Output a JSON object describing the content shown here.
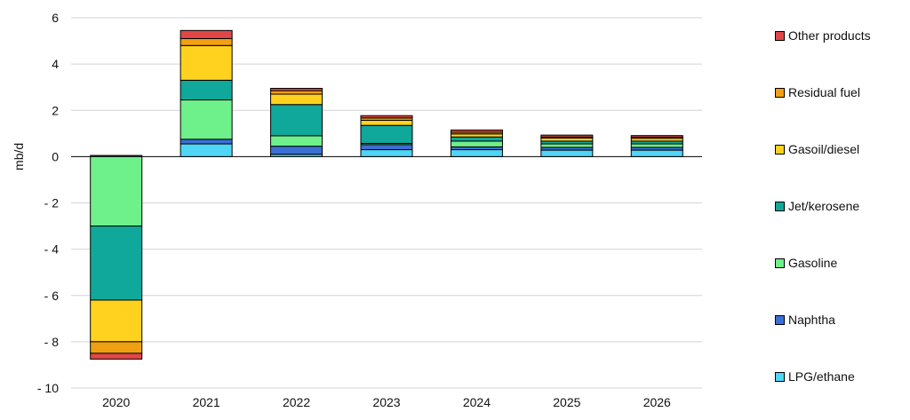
{
  "chart_data": {
    "type": "bar",
    "stacked": true,
    "title": "",
    "xlabel": "",
    "ylabel": "mb/d",
    "ylim": [
      -10,
      6
    ],
    "yticks": [
      6,
      4,
      2,
      0,
      -2,
      -4,
      -6,
      -8,
      -10
    ],
    "ytick_labels": [
      "6",
      "4",
      "2",
      "0",
      "- 2",
      "- 4",
      "- 6",
      "- 8",
      "- 10"
    ],
    "grid": true,
    "legend_position": "right",
    "categories": [
      "2020",
      "2021",
      "2022",
      "2023",
      "2024",
      "2025",
      "2026"
    ],
    "series": [
      {
        "name": "LPG/ethane",
        "color": "#4fd5f5",
        "values": [
          0.0,
          0.55,
          0.1,
          0.3,
          0.3,
          0.28,
          0.28
        ]
      },
      {
        "name": "Naphtha",
        "color": "#3a6fd4",
        "values": [
          0.05,
          0.2,
          0.35,
          0.22,
          0.12,
          0.12,
          0.12
        ]
      },
      {
        "name": "Gasoline",
        "color": "#6ef08a",
        "values": [
          -3.0,
          1.7,
          0.45,
          0.05,
          0.25,
          0.15,
          0.15
        ]
      },
      {
        "name": "Jet/kerosene",
        "color": "#0fa89a",
        "values": [
          -3.2,
          0.85,
          1.35,
          0.78,
          0.18,
          0.12,
          0.12
        ]
      },
      {
        "name": "Gasoil/diesel",
        "color": "#ffd21f",
        "values": [
          -1.8,
          1.5,
          0.45,
          0.22,
          0.13,
          0.13,
          0.12
        ]
      },
      {
        "name": "Residual fuel",
        "color": "#f0a010",
        "values": [
          -0.5,
          0.3,
          0.15,
          0.1,
          0.07,
          0.05,
          0.05
        ]
      },
      {
        "name": "Other products",
        "color": "#e04848",
        "values": [
          -0.25,
          0.35,
          0.1,
          0.1,
          0.1,
          0.08,
          0.07
        ]
      }
    ],
    "legend_order": [
      "Other products",
      "Residual fuel",
      "Gasoil/diesel",
      "Jet/kerosene",
      "Gasoline",
      "Naphtha",
      "LPG/ethane"
    ]
  }
}
